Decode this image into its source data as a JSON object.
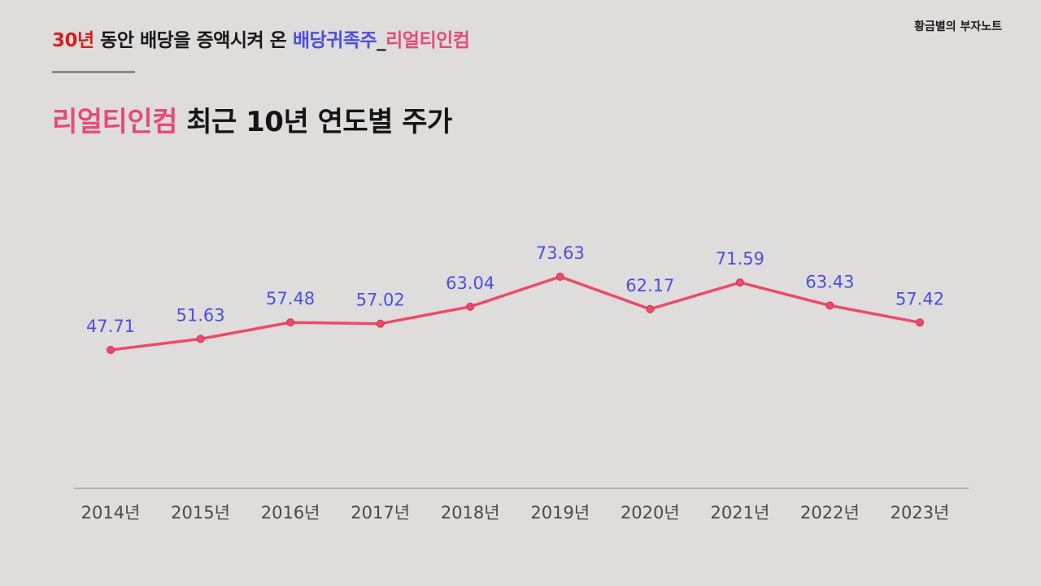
{
  "brand": "황금별의 부자노트",
  "header": {
    "part1": "30년",
    "part2": " 동안 배당을 증액시켜 온 ",
    "part3": "배당귀족주",
    "part4": "_",
    "part5": "리얼티인컴"
  },
  "title": {
    "highlight": "리얼티인컴",
    "rest": " 최근 10년 연도별 주가"
  },
  "colors": {
    "line": "#ee4a68",
    "value_label": "#4b4fe0",
    "tick_label": "#4a4a4a",
    "axis": "#9a9797"
  },
  "chart_data": {
    "type": "line",
    "title": "리얼티인컴 최근 10년 연도별 주가",
    "categories": [
      "2014년",
      "2015년",
      "2016년",
      "2017년",
      "2018년",
      "2019년",
      "2020년",
      "2021년",
      "2022년",
      "2023년"
    ],
    "series": [
      {
        "name": "주가",
        "values": [
          47.71,
          51.63,
          57.48,
          57.02,
          63.04,
          73.63,
          62.17,
          71.59,
          63.43,
          57.42
        ],
        "labels": [
          "47.71",
          "51.63",
          "57.48",
          "57.02",
          "63.04",
          "73.63",
          "62.17",
          "71.59",
          "63.43",
          "57.42"
        ]
      }
    ],
    "xlabel": "",
    "ylabel": "",
    "ylim": [
      0,
      90
    ],
    "grid": false,
    "legend": "none"
  }
}
